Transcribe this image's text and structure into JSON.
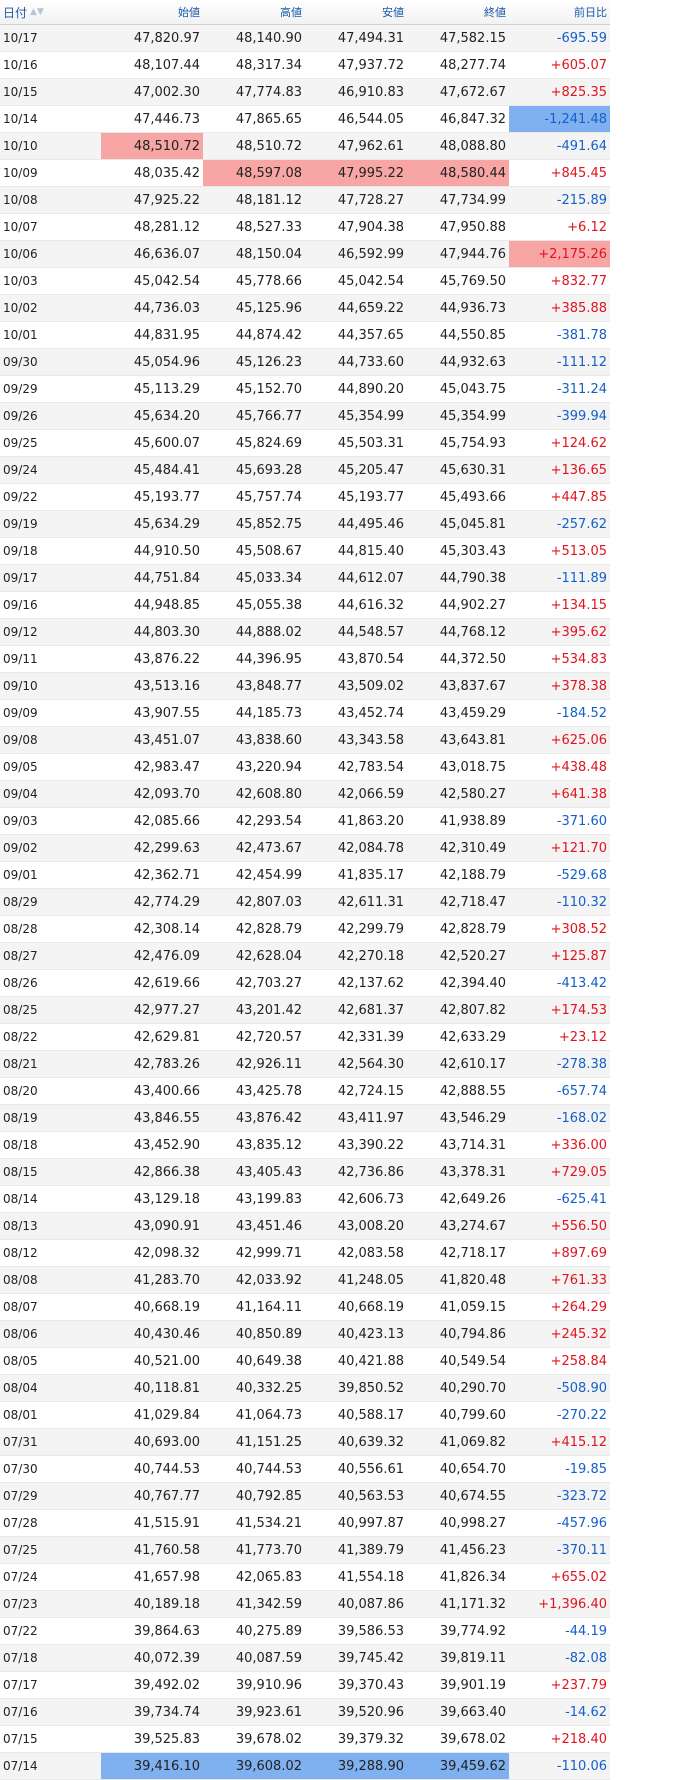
{
  "header": {
    "date": "日付",
    "open": "始値",
    "high": "高値",
    "low": "安値",
    "close": "終値",
    "change": "前日比"
  },
  "colors": {
    "up": "#e0141e",
    "down": "#1460c8",
    "highlight_red": "#f7a5a5",
    "highlight_blue": "#7fb0f0"
  },
  "rows": [
    {
      "date": "10/17",
      "open": "47,820.97",
      "high": "48,140.90",
      "low": "47,494.31",
      "close": "47,582.15",
      "change": "-695.59",
      "hl": {}
    },
    {
      "date": "10/16",
      "open": "48,107.44",
      "high": "48,317.34",
      "low": "47,937.72",
      "close": "48,277.74",
      "change": "+605.07",
      "hl": {}
    },
    {
      "date": "10/15",
      "open": "47,002.30",
      "high": "47,774.83",
      "low": "46,910.83",
      "close": "47,672.67",
      "change": "+825.35",
      "hl": {}
    },
    {
      "date": "10/14",
      "open": "47,446.73",
      "high": "47,865.65",
      "low": "46,544.05",
      "close": "46,847.32",
      "change": "-1,241.48",
      "hl": {
        "change": "blue"
      }
    },
    {
      "date": "10/10",
      "open": "48,510.72",
      "high": "48,510.72",
      "low": "47,962.61",
      "close": "48,088.80",
      "change": "-491.64",
      "hl": {
        "open": "red"
      }
    },
    {
      "date": "10/09",
      "open": "48,035.42",
      "high": "48,597.08",
      "low": "47,995.22",
      "close": "48,580.44",
      "change": "+845.45",
      "hl": {
        "high": "red",
        "low": "red",
        "close": "red"
      }
    },
    {
      "date": "10/08",
      "open": "47,925.22",
      "high": "48,181.12",
      "low": "47,728.27",
      "close": "47,734.99",
      "change": "-215.89",
      "hl": {}
    },
    {
      "date": "10/07",
      "open": "48,281.12",
      "high": "48,527.33",
      "low": "47,904.38",
      "close": "47,950.88",
      "change": "+6.12",
      "hl": {}
    },
    {
      "date": "10/06",
      "open": "46,636.07",
      "high": "48,150.04",
      "low": "46,592.99",
      "close": "47,944.76",
      "change": "+2,175.26",
      "hl": {
        "change": "red"
      }
    },
    {
      "date": "10/03",
      "open": "45,042.54",
      "high": "45,778.66",
      "low": "45,042.54",
      "close": "45,769.50",
      "change": "+832.77",
      "hl": {}
    },
    {
      "date": "10/02",
      "open": "44,736.03",
      "high": "45,125.96",
      "low": "44,659.22",
      "close": "44,936.73",
      "change": "+385.88",
      "hl": {}
    },
    {
      "date": "10/01",
      "open": "44,831.95",
      "high": "44,874.42",
      "low": "44,357.65",
      "close": "44,550.85",
      "change": "-381.78",
      "hl": {}
    },
    {
      "date": "09/30",
      "open": "45,054.96",
      "high": "45,126.23",
      "low": "44,733.60",
      "close": "44,932.63",
      "change": "-111.12",
      "hl": {}
    },
    {
      "date": "09/29",
      "open": "45,113.29",
      "high": "45,152.70",
      "low": "44,890.20",
      "close": "45,043.75",
      "change": "-311.24",
      "hl": {}
    },
    {
      "date": "09/26",
      "open": "45,634.20",
      "high": "45,766.77",
      "low": "45,354.99",
      "close": "45,354.99",
      "change": "-399.94",
      "hl": {}
    },
    {
      "date": "09/25",
      "open": "45,600.07",
      "high": "45,824.69",
      "low": "45,503.31",
      "close": "45,754.93",
      "change": "+124.62",
      "hl": {}
    },
    {
      "date": "09/24",
      "open": "45,484.41",
      "high": "45,693.28",
      "low": "45,205.47",
      "close": "45,630.31",
      "change": "+136.65",
      "hl": {}
    },
    {
      "date": "09/22",
      "open": "45,193.77",
      "high": "45,757.74",
      "low": "45,193.77",
      "close": "45,493.66",
      "change": "+447.85",
      "hl": {}
    },
    {
      "date": "09/19",
      "open": "45,634.29",
      "high": "45,852.75",
      "low": "44,495.46",
      "close": "45,045.81",
      "change": "-257.62",
      "hl": {}
    },
    {
      "date": "09/18",
      "open": "44,910.50",
      "high": "45,508.67",
      "low": "44,815.40",
      "close": "45,303.43",
      "change": "+513.05",
      "hl": {}
    },
    {
      "date": "09/17",
      "open": "44,751.84",
      "high": "45,033.34",
      "low": "44,612.07",
      "close": "44,790.38",
      "change": "-111.89",
      "hl": {}
    },
    {
      "date": "09/16",
      "open": "44,948.85",
      "high": "45,055.38",
      "low": "44,616.32",
      "close": "44,902.27",
      "change": "+134.15",
      "hl": {}
    },
    {
      "date": "09/12",
      "open": "44,803.30",
      "high": "44,888.02",
      "low": "44,548.57",
      "close": "44,768.12",
      "change": "+395.62",
      "hl": {}
    },
    {
      "date": "09/11",
      "open": "43,876.22",
      "high": "44,396.95",
      "low": "43,870.54",
      "close": "44,372.50",
      "change": "+534.83",
      "hl": {}
    },
    {
      "date": "09/10",
      "open": "43,513.16",
      "high": "43,848.77",
      "low": "43,509.02",
      "close": "43,837.67",
      "change": "+378.38",
      "hl": {}
    },
    {
      "date": "09/09",
      "open": "43,907.55",
      "high": "44,185.73",
      "low": "43,452.74",
      "close": "43,459.29",
      "change": "-184.52",
      "hl": {}
    },
    {
      "date": "09/08",
      "open": "43,451.07",
      "high": "43,838.60",
      "low": "43,343.58",
      "close": "43,643.81",
      "change": "+625.06",
      "hl": {}
    },
    {
      "date": "09/05",
      "open": "42,983.47",
      "high": "43,220.94",
      "low": "42,783.54",
      "close": "43,018.75",
      "change": "+438.48",
      "hl": {}
    },
    {
      "date": "09/04",
      "open": "42,093.70",
      "high": "42,608.80",
      "low": "42,066.59",
      "close": "42,580.27",
      "change": "+641.38",
      "hl": {}
    },
    {
      "date": "09/03",
      "open": "42,085.66",
      "high": "42,293.54",
      "low": "41,863.20",
      "close": "41,938.89",
      "change": "-371.60",
      "hl": {}
    },
    {
      "date": "09/02",
      "open": "42,299.63",
      "high": "42,473.67",
      "low": "42,084.78",
      "close": "42,310.49",
      "change": "+121.70",
      "hl": {}
    },
    {
      "date": "09/01",
      "open": "42,362.71",
      "high": "42,454.99",
      "low": "41,835.17",
      "close": "42,188.79",
      "change": "-529.68",
      "hl": {}
    },
    {
      "date": "08/29",
      "open": "42,774.29",
      "high": "42,807.03",
      "low": "42,611.31",
      "close": "42,718.47",
      "change": "-110.32",
      "hl": {}
    },
    {
      "date": "08/28",
      "open": "42,308.14",
      "high": "42,828.79",
      "low": "42,299.79",
      "close": "42,828.79",
      "change": "+308.52",
      "hl": {}
    },
    {
      "date": "08/27",
      "open": "42,476.09",
      "high": "42,628.04",
      "low": "42,270.18",
      "close": "42,520.27",
      "change": "+125.87",
      "hl": {}
    },
    {
      "date": "08/26",
      "open": "42,619.66",
      "high": "42,703.27",
      "low": "42,137.62",
      "close": "42,394.40",
      "change": "-413.42",
      "hl": {}
    },
    {
      "date": "08/25",
      "open": "42,977.27",
      "high": "43,201.42",
      "low": "42,681.37",
      "close": "42,807.82",
      "change": "+174.53",
      "hl": {}
    },
    {
      "date": "08/22",
      "open": "42,629.81",
      "high": "42,720.57",
      "low": "42,331.39",
      "close": "42,633.29",
      "change": "+23.12",
      "hl": {}
    },
    {
      "date": "08/21",
      "open": "42,783.26",
      "high": "42,926.11",
      "low": "42,564.30",
      "close": "42,610.17",
      "change": "-278.38",
      "hl": {}
    },
    {
      "date": "08/20",
      "open": "43,400.66",
      "high": "43,425.78",
      "low": "42,724.15",
      "close": "42,888.55",
      "change": "-657.74",
      "hl": {}
    },
    {
      "date": "08/19",
      "open": "43,846.55",
      "high": "43,876.42",
      "low": "43,411.97",
      "close": "43,546.29",
      "change": "-168.02",
      "hl": {}
    },
    {
      "date": "08/18",
      "open": "43,452.90",
      "high": "43,835.12",
      "low": "43,390.22",
      "close": "43,714.31",
      "change": "+336.00",
      "hl": {}
    },
    {
      "date": "08/15",
      "open": "42,866.38",
      "high": "43,405.43",
      "low": "42,736.86",
      "close": "43,378.31",
      "change": "+729.05",
      "hl": {}
    },
    {
      "date": "08/14",
      "open": "43,129.18",
      "high": "43,199.83",
      "low": "42,606.73",
      "close": "42,649.26",
      "change": "-625.41",
      "hl": {}
    },
    {
      "date": "08/13",
      "open": "43,090.91",
      "high": "43,451.46",
      "low": "43,008.20",
      "close": "43,274.67",
      "change": "+556.50",
      "hl": {}
    },
    {
      "date": "08/12",
      "open": "42,098.32",
      "high": "42,999.71",
      "low": "42,083.58",
      "close": "42,718.17",
      "change": "+897.69",
      "hl": {}
    },
    {
      "date": "08/08",
      "open": "41,283.70",
      "high": "42,033.92",
      "low": "41,248.05",
      "close": "41,820.48",
      "change": "+761.33",
      "hl": {}
    },
    {
      "date": "08/07",
      "open": "40,668.19",
      "high": "41,164.11",
      "low": "40,668.19",
      "close": "41,059.15",
      "change": "+264.29",
      "hl": {}
    },
    {
      "date": "08/06",
      "open": "40,430.46",
      "high": "40,850.89",
      "low": "40,423.13",
      "close": "40,794.86",
      "change": "+245.32",
      "hl": {}
    },
    {
      "date": "08/05",
      "open": "40,521.00",
      "high": "40,649.38",
      "low": "40,421.88",
      "close": "40,549.54",
      "change": "+258.84",
      "hl": {}
    },
    {
      "date": "08/04",
      "open": "40,118.81",
      "high": "40,332.25",
      "low": "39,850.52",
      "close": "40,290.70",
      "change": "-508.90",
      "hl": {}
    },
    {
      "date": "08/01",
      "open": "41,029.84",
      "high": "41,064.73",
      "low": "40,588.17",
      "close": "40,799.60",
      "change": "-270.22",
      "hl": {}
    },
    {
      "date": "07/31",
      "open": "40,693.00",
      "high": "41,151.25",
      "low": "40,639.32",
      "close": "41,069.82",
      "change": "+415.12",
      "hl": {}
    },
    {
      "date": "07/30",
      "open": "40,744.53",
      "high": "40,744.53",
      "low": "40,556.61",
      "close": "40,654.70",
      "change": "-19.85",
      "hl": {}
    },
    {
      "date": "07/29",
      "open": "40,767.77",
      "high": "40,792.85",
      "low": "40,563.53",
      "close": "40,674.55",
      "change": "-323.72",
      "hl": {}
    },
    {
      "date": "07/28",
      "open": "41,515.91",
      "high": "41,534.21",
      "low": "40,997.87",
      "close": "40,998.27",
      "change": "-457.96",
      "hl": {}
    },
    {
      "date": "07/25",
      "open": "41,760.58",
      "high": "41,773.70",
      "low": "41,389.79",
      "close": "41,456.23",
      "change": "-370.11",
      "hl": {}
    },
    {
      "date": "07/24",
      "open": "41,657.98",
      "high": "42,065.83",
      "low": "41,554.18",
      "close": "41,826.34",
      "change": "+655.02",
      "hl": {}
    },
    {
      "date": "07/23",
      "open": "40,189.18",
      "high": "41,342.59",
      "low": "40,087.86",
      "close": "41,171.32",
      "change": "+1,396.40",
      "hl": {}
    },
    {
      "date": "07/22",
      "open": "39,864.63",
      "high": "40,275.89",
      "low": "39,586.53",
      "close": "39,774.92",
      "change": "-44.19",
      "hl": {}
    },
    {
      "date": "07/18",
      "open": "40,072.39",
      "high": "40,087.59",
      "low": "39,745.42",
      "close": "39,819.11",
      "change": "-82.08",
      "hl": {}
    },
    {
      "date": "07/17",
      "open": "39,492.02",
      "high": "39,910.96",
      "low": "39,370.43",
      "close": "39,901.19",
      "change": "+237.79",
      "hl": {}
    },
    {
      "date": "07/16",
      "open": "39,734.74",
      "high": "39,923.61",
      "low": "39,520.96",
      "close": "39,663.40",
      "change": "-14.62",
      "hl": {}
    },
    {
      "date": "07/15",
      "open": "39,525.83",
      "high": "39,678.02",
      "low": "39,379.32",
      "close": "39,678.02",
      "change": "+218.40",
      "hl": {}
    },
    {
      "date": "07/14",
      "open": "39,416.10",
      "high": "39,608.02",
      "low": "39,288.90",
      "close": "39,459.62",
      "change": "-110.06",
      "hl": {
        "open": "blue",
        "high": "blue",
        "low": "blue",
        "close": "blue"
      }
    }
  ]
}
